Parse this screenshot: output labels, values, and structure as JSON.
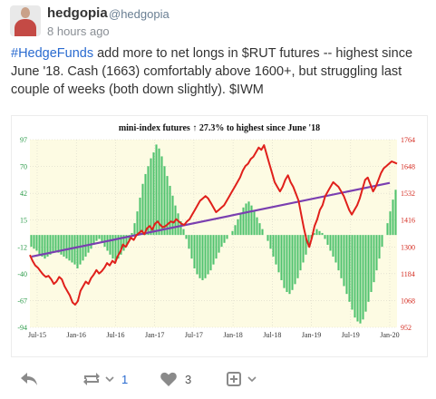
{
  "post": {
    "username": "hedgopia",
    "handle": "@hedgopia",
    "time": "8 hours ago",
    "hashtag": "#HedgeFunds",
    "text": " add more to net longs in $RUT futures -- highest since June '18. Cash (1663) comfortably above 1600+, but struggling last couple of weeks (both down slightly). $IWM"
  },
  "footer": {
    "reply_icon": "reply-icon",
    "repeat_icon": "repeat-icon",
    "repeat_count": "1",
    "like_icon": "heart-icon",
    "like_count": "3",
    "more_icon": "options-icon"
  },
  "chart_data": {
    "type": "bar",
    "title": "mini-index futures ↑ 27.3% to highest since June '18",
    "x_tick_labels": [
      "Jul-15",
      "Jan-16",
      "Jul-16",
      "Jan-17",
      "Jul-17",
      "Jan-18",
      "Jul-18",
      "Jan-19",
      "Jul-19",
      "Jan-20"
    ],
    "y_left_ticks": [
      "97",
      "70",
      "42",
      "15",
      "-12",
      "-40",
      "-67",
      "-94"
    ],
    "y_right_ticks": [
      "1764",
      "1648",
      "1532",
      "1416",
      "1300",
      "1184",
      "1068",
      "952"
    ],
    "ylim_left": [
      -94,
      97
    ],
    "ylim_right": [
      952,
      1764
    ],
    "bar_color": "#33b85a",
    "line_color": "#e0201b",
    "trend_color": "#7a3fb0",
    "series": [
      {
        "axis": "left",
        "values": [
          -12,
          -14,
          -16,
          -20,
          -22,
          -24,
          -22,
          -20,
          -18,
          -16,
          -18,
          -20,
          -22,
          -24,
          -26,
          -28,
          -30,
          -34,
          -30,
          -26,
          -22,
          -18,
          -14,
          -10,
          -6,
          -4,
          -8,
          -12,
          -16,
          -20,
          -24,
          -28,
          -24,
          -20,
          -16,
          -12,
          -6,
          2,
          12,
          24,
          38,
          52,
          62,
          70,
          78,
          84,
          92,
          88,
          80,
          70,
          60,
          50,
          40,
          30,
          22,
          14,
          6,
          -4,
          -14,
          -24,
          -34,
          -40,
          -44,
          -46,
          -44,
          -40,
          -36,
          -30,
          -24,
          -18,
          -12,
          -8,
          -4,
          0,
          4,
          10,
          16,
          22,
          28,
          32,
          34,
          30,
          24,
          18,
          12,
          6,
          0,
          -6,
          -14,
          -22,
          -30,
          -38,
          -46,
          -54,
          -58,
          -60,
          -56,
          -50,
          -44,
          -36,
          -28,
          -20,
          -12,
          -4,
          2,
          6,
          4,
          2,
          -4,
          -10,
          -16,
          -22,
          -28,
          -36,
          -44,
          -52,
          -60,
          -68,
          -76,
          -84,
          -88,
          -90,
          -86,
          -78,
          -68,
          -58,
          -48,
          -36,
          -24,
          -12,
          0,
          12,
          24,
          36,
          46
        ]
      },
      {
        "axis": "right",
        "values": [
          1265,
          1240,
          1220,
          1210,
          1195,
          1180,
          1170,
          1175,
          1160,
          1140,
          1150,
          1170,
          1160,
          1130,
          1110,
          1090,
          1060,
          1050,
          1065,
          1110,
          1130,
          1150,
          1140,
          1165,
          1180,
          1200,
          1185,
          1195,
          1210,
          1230,
          1220,
          1240,
          1230,
          1260,
          1280,
          1310,
          1300,
          1320,
          1340,
          1330,
          1350,
          1360,
          1370,
          1355,
          1380,
          1390,
          1375,
          1400,
          1410,
          1395,
          1385,
          1390,
          1400,
          1410,
          1405,
          1420,
          1410,
          1400,
          1395,
          1410,
          1420,
          1440,
          1460,
          1480,
          1500,
          1510,
          1520,
          1510,
          1490,
          1470,
          1450,
          1460,
          1470,
          1480,
          1500,
          1520,
          1540,
          1560,
          1580,
          1600,
          1630,
          1650,
          1660,
          1680,
          1690,
          1710,
          1730,
          1720,
          1740,
          1700,
          1660,
          1620,
          1580,
          1560,
          1540,
          1560,
          1590,
          1610,
          1580,
          1560,
          1530,
          1500,
          1440,
          1380,
          1330,
          1300,
          1340,
          1390,
          1420,
          1460,
          1480,
          1520,
          1540,
          1560,
          1580,
          1570,
          1560,
          1540,
          1520,
          1490,
          1460,
          1440,
          1460,
          1480,
          1510,
          1550,
          1590,
          1600,
          1570,
          1540,
          1560,
          1590,
          1620,
          1640,
          1650,
          1660,
          1670,
          1665,
          1660
        ]
      },
      {
        "axis": "left",
        "values": [
          -22,
          53
        ]
      }
    ]
  }
}
